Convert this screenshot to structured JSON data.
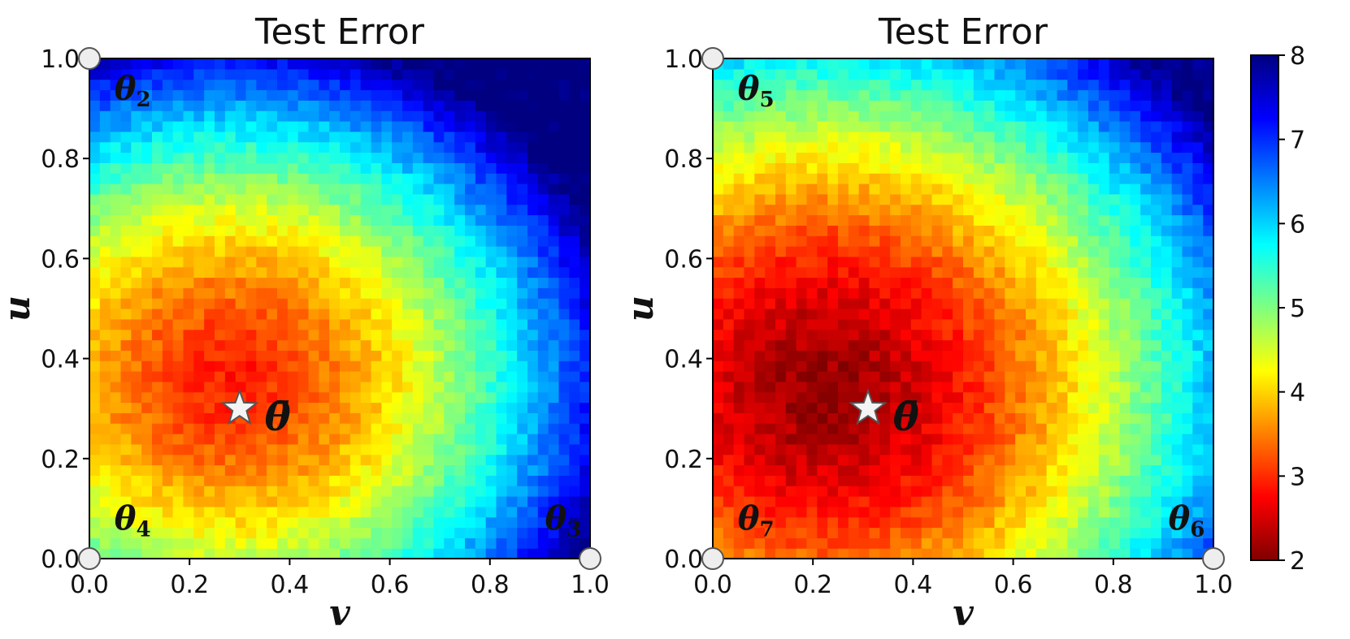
{
  "chart_data": [
    {
      "type": "heatmap",
      "title": "Test Error",
      "xlabel": "v",
      "ylabel": "u",
      "xlim": [
        0.0,
        1.0
      ],
      "ylim": [
        0.0,
        1.0
      ],
      "xticks": [
        "0.0",
        "0.2",
        "0.4",
        "0.6",
        "0.8",
        "1.0"
      ],
      "yticks": [
        "0.0",
        "0.2",
        "0.4",
        "0.6",
        "0.8",
        "1.0"
      ],
      "colorscale": "jet (reversed)",
      "surface": {
        "minimum": [
          0.28,
          0.36
        ],
        "min_value": 2.9,
        "spread": [
          0.48,
          0.42
        ],
        "far_value": 8.1
      },
      "markers": [
        {
          "symbol": "circle",
          "x": 0.0,
          "y": 1.0
        },
        {
          "symbol": "circle",
          "x": 0.0,
          "y": 0.0
        },
        {
          "symbol": "circle",
          "x": 1.0,
          "y": 0.0
        },
        {
          "symbol": "star",
          "x": 0.3,
          "y": 0.3
        }
      ],
      "annotations": [
        {
          "base": "θ",
          "sub": "2",
          "x": 0.05,
          "y": 0.94
        },
        {
          "base": "θ",
          "sub": "4",
          "x": 0.05,
          "y": 0.08
        },
        {
          "base": "θ",
          "sub": "3",
          "x": 0.91,
          "y": 0.08
        },
        {
          "base": "θ̄",
          "sub": "",
          "x": 0.35,
          "y": 0.28
        }
      ]
    },
    {
      "type": "heatmap",
      "title": "Test Error",
      "xlabel": "v",
      "ylabel": "u",
      "xlim": [
        0.0,
        1.0
      ],
      "ylim": [
        0.0,
        1.0
      ],
      "xticks": [
        "0.0",
        "0.2",
        "0.4",
        "0.6",
        "0.8",
        "1.0"
      ],
      "yticks": [
        "0.0",
        "0.2",
        "0.4",
        "0.6",
        "0.8",
        "1.0"
      ],
      "colorscale": "jet (reversed)",
      "surface": {
        "minimum": [
          0.22,
          0.34
        ],
        "min_value": 2.1,
        "spread": [
          0.58,
          0.52
        ],
        "far_value": 8.0
      },
      "markers": [
        {
          "symbol": "circle",
          "x": 0.0,
          "y": 1.0
        },
        {
          "symbol": "circle",
          "x": 0.0,
          "y": 0.0
        },
        {
          "symbol": "circle",
          "x": 1.0,
          "y": 0.0
        },
        {
          "symbol": "star",
          "x": 0.31,
          "y": 0.3
        }
      ],
      "annotations": [
        {
          "base": "θ",
          "sub": "5",
          "x": 0.05,
          "y": 0.94
        },
        {
          "base": "θ",
          "sub": "7",
          "x": 0.05,
          "y": 0.08
        },
        {
          "base": "θ",
          "sub": "6",
          "x": 0.91,
          "y": 0.08
        },
        {
          "base": "θ̄",
          "sub": "",
          "x": 0.36,
          "y": 0.28
        }
      ]
    }
  ],
  "colorbar": {
    "min": 2,
    "max": 8,
    "ticks": [
      "2",
      "3",
      "4",
      "5",
      "6",
      "7",
      "8"
    ],
    "colorscale": "jet (reversed)"
  }
}
